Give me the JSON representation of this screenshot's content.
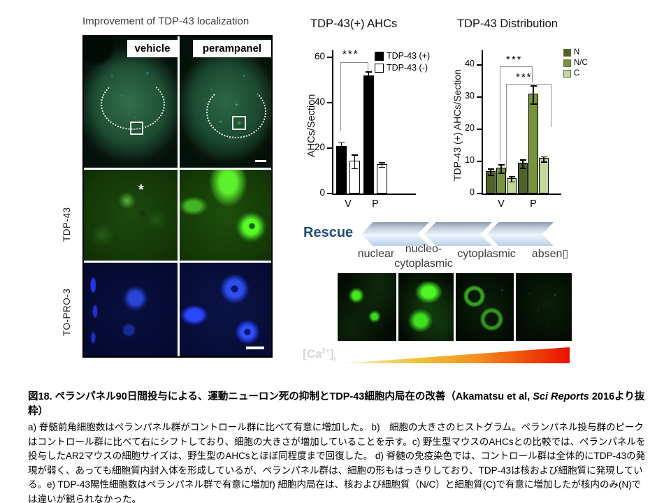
{
  "figure": {
    "title": "Improvement of TDP-43 localization",
    "columns": [
      "vehicle",
      "perampanel"
    ],
    "rows": [
      "TDP-43",
      "TO-PRO-3"
    ],
    "asterisk": "*"
  },
  "chart_data": [
    {
      "type": "bar",
      "title": "TDP-43(+) AHCs",
      "ylabel": "AHCs/Section",
      "categories": [
        "V",
        "P"
      ],
      "yticks": [
        0,
        20,
        40,
        60
      ],
      "ylim": [
        0,
        63
      ],
      "grid": false,
      "legend_position": "top-right",
      "series": [
        {
          "name": "TDP-43 (+)",
          "color": "#000000",
          "values": [
            21,
            52
          ],
          "errors": [
            1.8,
            2
          ]
        },
        {
          "name": "TDP-43 (-)",
          "color": "#ffffff",
          "values": [
            14.5,
            13
          ],
          "errors": [
            3,
            1
          ]
        }
      ],
      "significance": [
        {
          "label": "***",
          "compares": "V vs P, TDP-43 (+)"
        }
      ]
    },
    {
      "type": "bar",
      "title": "TDP-43 Distribution",
      "ylabel": "TDP-43 (+) AHCs/Section",
      "categories": [
        "V",
        "P"
      ],
      "yticks": [
        0,
        10,
        20,
        30,
        40
      ],
      "ylim": [
        0,
        44.5
      ],
      "grid": false,
      "legend_position": "top-right",
      "series": [
        {
          "name": "N",
          "color": "#4f6228",
          "values": [
            7,
            9.5
          ],
          "errors": [
            1,
            1.3
          ]
        },
        {
          "name": "N/C",
          "color": "#77933c",
          "values": [
            8,
            31
          ],
          "errors": [
            1.3,
            2.8
          ]
        },
        {
          "name": "C",
          "color": "#c3d69b",
          "values": [
            4.8,
            11
          ],
          "errors": [
            0.8,
            0.8
          ]
        }
      ],
      "significance": [
        {
          "label": "***",
          "compares": "V vs P, N/C"
        },
        {
          "label": "***",
          "compares": "V vs P, C"
        }
      ]
    }
  ],
  "rescue": {
    "label": "Rescue",
    "stages": [
      "nuclear",
      "nucleo-\ncytoplasmic",
      "cytoplasmic",
      "absen▯"
    ]
  },
  "calcium": {
    "pre": "[Ca",
    "sup": "2+",
    "post": "]",
    "sub": "i"
  },
  "caption": {
    "heading_pre": "図18. ペランパネル90日間投与による、運動ニューロン死の抑制とTDP-43細胞内局在の改善（Akamatsu et al, ",
    "heading_italic": "Sci Reports",
    "heading_post": " 2016より抜粋）",
    "body": "a) 脊髄前角細胞数はペランパネル群がコントロール群に比べて有意に増加した。 b)　細胞の大きさのヒストグラム。ペランパネル投与群のピークはコントロール群に比べて右にシフトしており、細胞の大きさが増加していることを示す。c) 野生型マウスのAHCsとの比較では、ペランパネルを投与したAR2マウスの細胞サイズは、野生型のAHCsとほぼ同程度まで回復した。 d) 脊髄の免疫染色では、コントロール群は全体的にTDP-43の発現が弱く、あっても細胞質内封入体を形成しているが、ペランパネル群は、細胞の形もはっきりしており、TDP-43は核および細胞質に発現している。e) TDP-43陽性細胞数はペランパネル群で有意に増加f) 細胞内局在は、核および細胞質（N/C）と細胞質(C)で有意に増加したが核内のみ(N)では違いが観られなかった。"
  }
}
